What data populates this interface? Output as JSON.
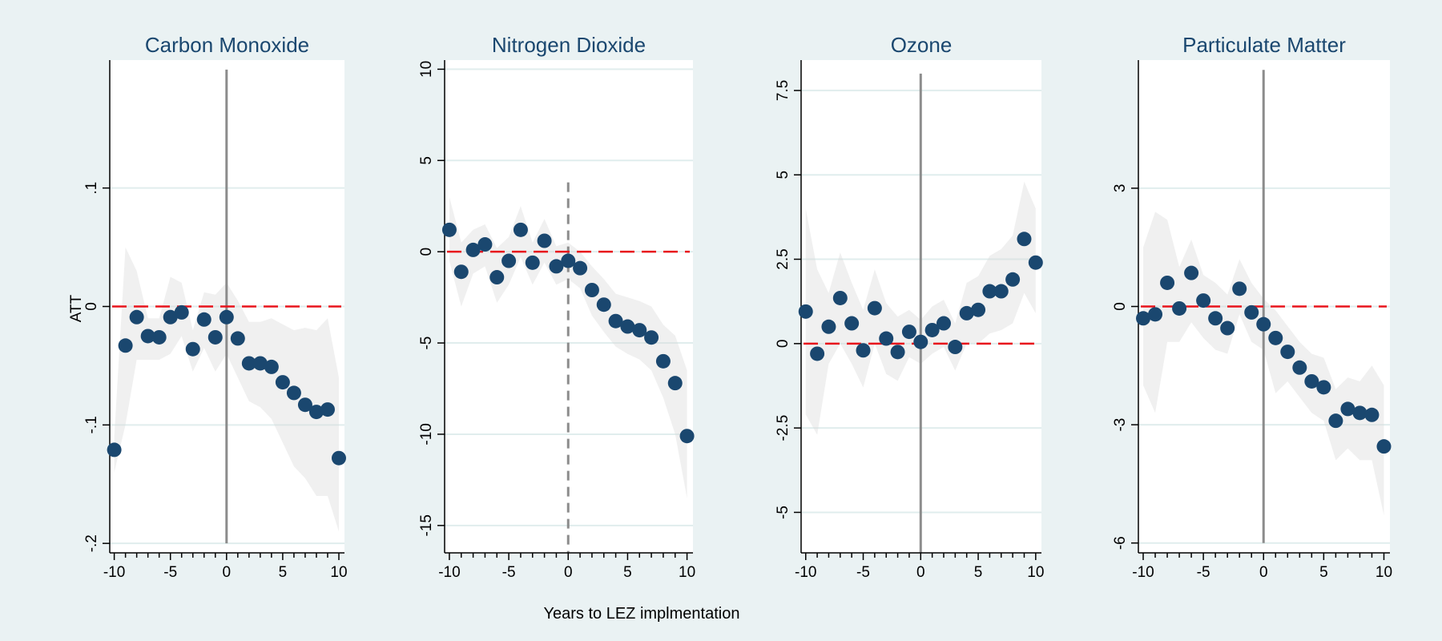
{
  "figure": {
    "xlabel": "Years to LEZ implmentation",
    "ylabel": "ATT"
  },
  "chart_data": [
    {
      "type": "scatter",
      "title": "Carbon Monoxide",
      "xlim": [
        -10.4,
        10.5
      ],
      "ylim": [
        -0.208,
        0.208
      ],
      "xticks": [
        "-10",
        "-5",
        "0",
        "5",
        "10"
      ],
      "xtick_values": [
        -10,
        -5,
        0,
        5,
        10
      ],
      "yticks": [
        "-.2",
        "-.1",
        "0",
        ".1"
      ],
      "ytick_values": [
        -0.2,
        -0.1,
        0,
        0.1
      ],
      "x": [
        -10,
        -9,
        -8,
        -7,
        -6,
        -5,
        -4,
        -3,
        -2,
        -1,
        0,
        1,
        2,
        3,
        4,
        5,
        6,
        7,
        8,
        9,
        10
      ],
      "y": [
        -0.121,
        -0.033,
        -0.009,
        -0.025,
        -0.026,
        -0.009,
        -0.005,
        -0.036,
        -0.011,
        -0.026,
        -0.009,
        -0.027,
        -0.048,
        -0.048,
        -0.051,
        -0.064,
        -0.073,
        -0.083,
        -0.089,
        -0.087,
        -0.128
      ],
      "ci_upper": [
        -0.11,
        0.05,
        0.03,
        -0.01,
        -0.01,
        0.025,
        0.02,
        -0.02,
        0.012,
        0.01,
        0.02,
        0.005,
        -0.013,
        -0.013,
        -0.01,
        -0.015,
        -0.02,
        -0.018,
        -0.02,
        -0.01,
        -0.06
      ],
      "ci_lower": [
        -0.14,
        -0.1,
        -0.045,
        -0.045,
        -0.045,
        -0.04,
        -0.025,
        -0.055,
        -0.035,
        -0.055,
        -0.04,
        -0.06,
        -0.08,
        -0.085,
        -0.095,
        -0.115,
        -0.135,
        -0.145,
        -0.16,
        -0.16,
        -0.19
      ],
      "zero_line": 0,
      "event_line": {
        "x": 0,
        "style": "solid",
        "y_from": -0.2,
        "y_to": 0.2
      },
      "marker_color": "#1a476f",
      "ref_color": "#e8141c"
    },
    {
      "type": "scatter",
      "title": "Nitrogen Dioxide",
      "xlim": [
        -10.4,
        10.5
      ],
      "ylim": [
        -16.5,
        10.5
      ],
      "xticks": [
        "-10",
        "-5",
        "0",
        "5",
        "10"
      ],
      "xtick_values": [
        -10,
        -5,
        0,
        5,
        10
      ],
      "yticks": [
        "-15",
        "-10",
        "-5",
        "0",
        "5",
        "10"
      ],
      "ytick_values": [
        -15,
        -10,
        -5,
        0,
        5,
        10
      ],
      "x": [
        -10,
        -9,
        -8,
        -7,
        -6,
        -5,
        -4,
        -3,
        -2,
        -1,
        0,
        1,
        2,
        3,
        4,
        5,
        6,
        7,
        8,
        9,
        10
      ],
      "y": [
        1.2,
        -1.1,
        0.1,
        0.4,
        -1.4,
        -0.5,
        1.2,
        -0.6,
        0.6,
        -0.8,
        -0.5,
        -0.9,
        -2.1,
        -2.9,
        -3.8,
        -4.1,
        -4.3,
        -4.7,
        -6.0,
        -7.2,
        -10.1
      ],
      "ci_upper": [
        3.0,
        0.5,
        1.2,
        1.5,
        0.2,
        0.8,
        2.5,
        0.5,
        1.8,
        0.3,
        0.5,
        0.0,
        -0.8,
        -1.5,
        -2.3,
        -2.5,
        -2.7,
        -3.0,
        -4.0,
        -4.6,
        -6.5
      ],
      "ci_lower": [
        -0.5,
        -3.0,
        -1.2,
        -0.8,
        -2.8,
        -1.8,
        -0.3,
        -1.8,
        -0.6,
        -1.8,
        -1.5,
        -2.0,
        -3.5,
        -4.4,
        -5.2,
        -5.6,
        -5.9,
        -6.5,
        -8.0,
        -10.0,
        -13.5
      ],
      "zero_line": 0,
      "event_line": {
        "x": 0,
        "style": "dashed",
        "y_from": -16.5,
        "y_to": 3.8
      },
      "marker_color": "#1a476f",
      "ref_color": "#e8141c"
    },
    {
      "type": "scatter",
      "title": "Ozone",
      "xlim": [
        -10.4,
        10.5
      ],
      "ylim": [
        -6.2,
        8.4
      ],
      "xticks": [
        "-10",
        "-5",
        "0",
        "5",
        "10"
      ],
      "xtick_values": [
        -10,
        -5,
        0,
        5,
        10
      ],
      "yticks": [
        "-5",
        "-2.5",
        "0",
        "2.5",
        "5",
        "7.5"
      ],
      "ytick_values": [
        -5,
        -2.5,
        0,
        2.5,
        5,
        7.5
      ],
      "x": [
        -10,
        -9,
        -8,
        -7,
        -6,
        -5,
        -4,
        -3,
        -2,
        -1,
        0,
        1,
        2,
        3,
        4,
        5,
        6,
        7,
        8,
        9,
        10
      ],
      "y": [
        0.95,
        -0.3,
        0.5,
        1.35,
        0.6,
        -0.2,
        1.05,
        0.15,
        -0.25,
        0.35,
        0.05,
        0.4,
        0.6,
        -0.1,
        0.9,
        1.0,
        1.55,
        1.55,
        1.9,
        3.1,
        2.4
      ],
      "ci_upper": [
        4.0,
        2.2,
        1.5,
        2.7,
        1.8,
        1.0,
        2.2,
        1.2,
        0.8,
        1.0,
        0.7,
        1.1,
        1.3,
        0.6,
        1.8,
        2.0,
        2.6,
        2.8,
        3.2,
        4.8,
        4.0
      ],
      "ci_lower": [
        -2.1,
        -2.7,
        -0.6,
        0.0,
        -0.6,
        -1.3,
        0.0,
        -0.9,
        -1.1,
        -0.4,
        -0.6,
        -0.3,
        -0.1,
        -0.8,
        0.0,
        0.0,
        0.3,
        0.4,
        0.6,
        1.5,
        0.9
      ],
      "zero_line": 0,
      "event_line": {
        "x": 0,
        "style": "solid",
        "y_from": -6.2,
        "y_to": 8.0
      },
      "marker_color": "#1a476f",
      "ref_color": "#e8141c"
    },
    {
      "type": "scatter",
      "title": "Particulate Matter",
      "xlim": [
        -10.4,
        10.5
      ],
      "ylim": [
        -6.25,
        6.25
      ],
      "xticks": [
        "-10",
        "-5",
        "0",
        "5",
        "10"
      ],
      "xtick_values": [
        -10,
        -5,
        0,
        5,
        10
      ],
      "yticks": [
        "-6",
        "-3",
        "0",
        "3"
      ],
      "ytick_values": [
        -6,
        -3,
        0,
        3
      ],
      "x": [
        -10,
        -9,
        -8,
        -7,
        -6,
        -5,
        -4,
        -3,
        -2,
        -1,
        0,
        1,
        2,
        3,
        4,
        5,
        6,
        7,
        8,
        9,
        10
      ],
      "y": [
        -0.3,
        -0.2,
        0.6,
        -0.05,
        0.85,
        0.15,
        -0.3,
        -0.55,
        0.45,
        -0.15,
        -0.45,
        -0.8,
        -1.15,
        -1.55,
        -1.9,
        -2.05,
        -2.9,
        -2.6,
        -2.7,
        -2.75,
        -3.55
      ],
      "ci_upper": [
        1.5,
        2.4,
        2.2,
        1.0,
        1.7,
        0.8,
        0.6,
        0.3,
        1.2,
        0.6,
        0.2,
        -0.1,
        -0.5,
        -0.9,
        -1.2,
        -1.3,
        -2.1,
        -1.8,
        -1.9,
        -1.5,
        -2.0
      ],
      "ci_lower": [
        -2.0,
        -2.7,
        -0.9,
        -0.9,
        -0.4,
        -0.8,
        -1.1,
        -1.2,
        -0.2,
        -0.9,
        -1.1,
        -2.2,
        -1.9,
        -2.3,
        -2.7,
        -2.9,
        -3.9,
        -3.6,
        -3.9,
        -3.9,
        -5.3
      ],
      "zero_line": 0,
      "event_line": {
        "x": 0,
        "style": "solid",
        "y_from": -6.0,
        "y_to": 6.0
      },
      "marker_color": "#1a476f",
      "ref_color": "#e8141c"
    }
  ]
}
